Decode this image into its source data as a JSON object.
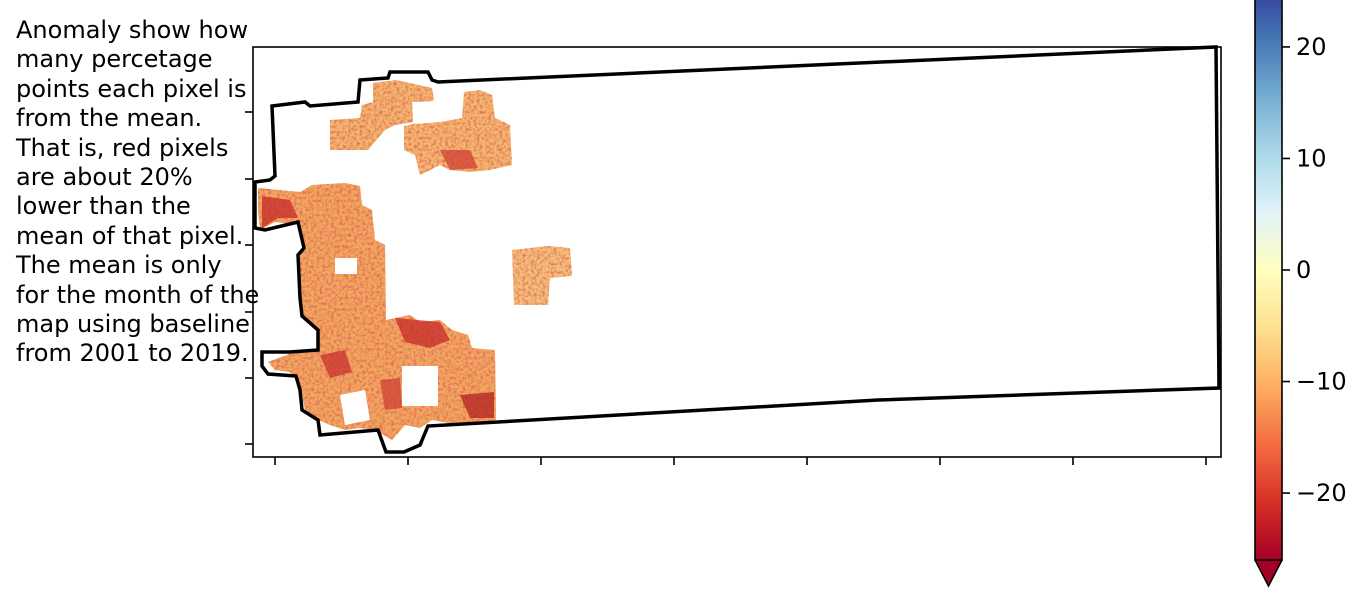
{
  "annotation": "Anomaly show how many percetage points each pixel is from the mean. That is, red pixels are about 20% lower than the mean of that pixel. The mean is only for the month of the map using baseline from 2001 to 2019.",
  "colorbar": {
    "colormap": "RdYlBu",
    "range": [
      -26,
      26
    ],
    "extend": "min",
    "ticks": [
      {
        "value": 20,
        "label": "20"
      },
      {
        "value": 10,
        "label": "10"
      },
      {
        "value": 0,
        "label": "0"
      },
      {
        "value": -10,
        "label": "−10"
      },
      {
        "value": -20,
        "label": "−20"
      }
    ],
    "stops": [
      "#a50026",
      "#d73027",
      "#f46d43",
      "#fdae61",
      "#fee090",
      "#ffffbf",
      "#e0f3f8",
      "#abd9e9",
      "#74add1",
      "#4575b4",
      "#313695"
    ]
  },
  "map": {
    "boundary_color": "#000000",
    "axis_ticks": "unlabeled"
  }
}
